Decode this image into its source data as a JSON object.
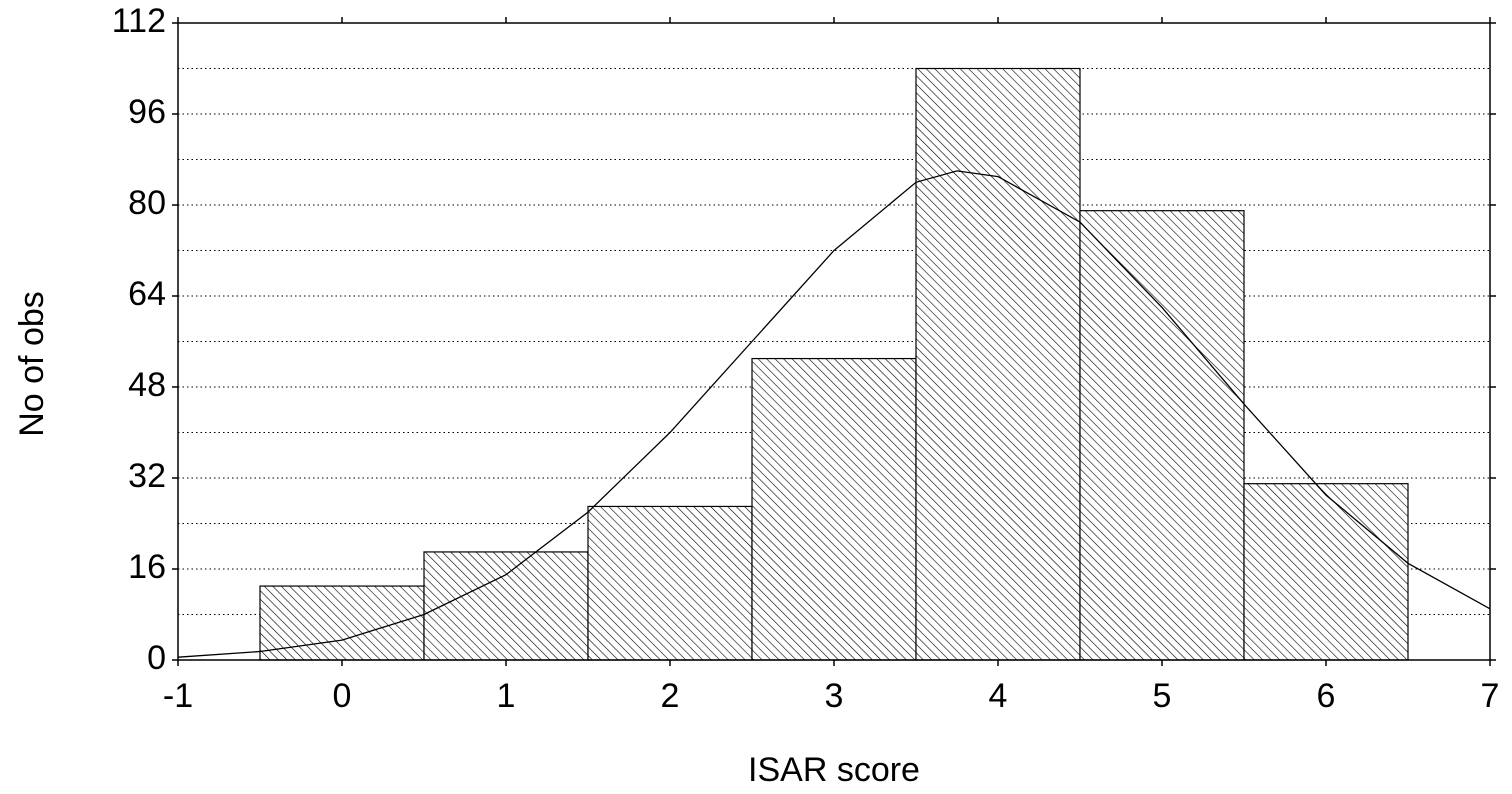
{
  "chart_data": {
    "type": "histogram",
    "x_label": "ISAR score",
    "y_label": "No of obs",
    "bins": [
      -0.5,
      0.5,
      1.5,
      2.5,
      3.5,
      4.5,
      5.5,
      6.5
    ],
    "values": [
      13,
      19,
      27,
      53,
      104,
      79,
      31
    ],
    "color": "#000000",
    "hatch": true,
    "curve": {
      "x": [
        -1,
        -0.5,
        0,
        0.5,
        1,
        1.5,
        2,
        2.5,
        3,
        3.5,
        3.75,
        4,
        4.5,
        5,
        5.5,
        6,
        6.5,
        7
      ],
      "values": [
        0.5,
        1.5,
        3.5,
        8,
        15,
        26,
        40,
        56,
        72,
        84,
        86,
        85,
        77,
        62,
        45,
        29,
        17,
        9
      ],
      "color": "#000000"
    },
    "xlim": [
      -1,
      7
    ],
    "xticks": [
      -1,
      0,
      1,
      2,
      3,
      4,
      5,
      6,
      7
    ],
    "ylim": [
      0,
      112
    ],
    "yticks": [
      0,
      16,
      32,
      48,
      64,
      80,
      96,
      112
    ],
    "ygrid": [
      8,
      16,
      24,
      32,
      40,
      48,
      56,
      64,
      72,
      80,
      88,
      96,
      104
    ],
    "grid": true
  }
}
